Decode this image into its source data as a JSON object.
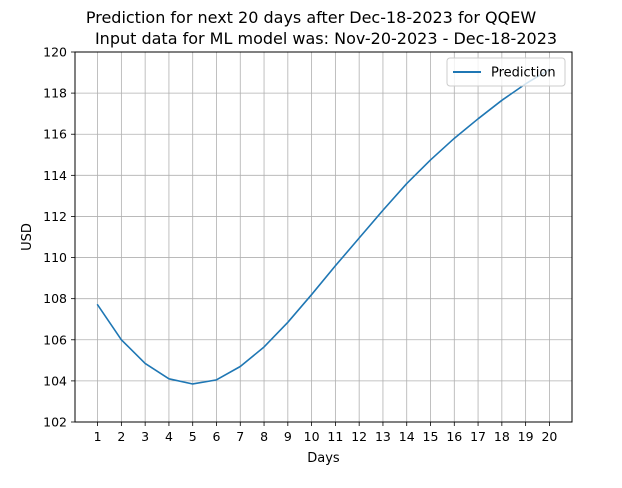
{
  "chart_data": {
    "type": "line",
    "title": "Prediction for next 20 days after Dec-18-2023 for QQEW",
    "subtitle": "Input data for ML model was: Nov-20-2023 - Dec-18-2023",
    "xlabel": "Days",
    "ylabel": "USD",
    "x": [
      1,
      2,
      3,
      4,
      5,
      6,
      7,
      8,
      9,
      10,
      11,
      12,
      13,
      14,
      15,
      16,
      17,
      18,
      19,
      20
    ],
    "xlim": [
      0.05,
      20.95
    ],
    "ylim": [
      102,
      120
    ],
    "x_ticks": [
      "1",
      "2",
      "3",
      "4",
      "5",
      "6",
      "7",
      "8",
      "9",
      "10",
      "11",
      "12",
      "13",
      "14",
      "15",
      "16",
      "17",
      "18",
      "19",
      "20"
    ],
    "y_ticks": [
      "102",
      "104",
      "106",
      "108",
      "110",
      "112",
      "114",
      "116",
      "118",
      "120"
    ],
    "grid": true,
    "legend_position": "upper right",
    "series": [
      {
        "name": "Prediction",
        "color": "#1f77b4",
        "values": [
          107.7,
          106.0,
          104.85,
          104.1,
          103.85,
          104.05,
          104.7,
          105.65,
          106.85,
          108.2,
          109.6,
          110.95,
          112.3,
          113.6,
          114.75,
          115.8,
          116.75,
          117.65,
          118.45,
          119.15
        ]
      }
    ]
  }
}
